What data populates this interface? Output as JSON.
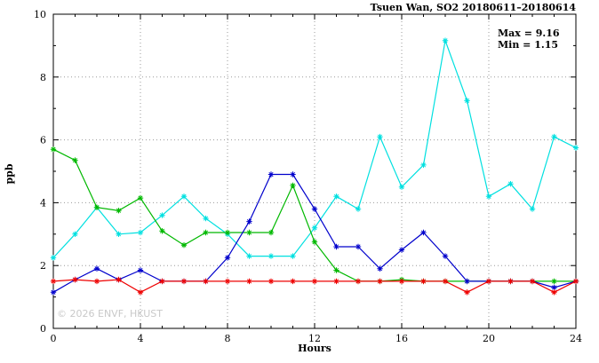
{
  "title": "Tsuen Wan, SO2 20180611–20180614",
  "annotation": {
    "max_label": "Max = 9.16",
    "min_label": "Min = 1.15"
  },
  "watermark": "© 2026 ENVF, HKUST",
  "axes": {
    "xlabel": "Hours",
    "ylabel": "ppb",
    "x_ticks": [
      0,
      4,
      8,
      12,
      16,
      20,
      24
    ],
    "y_ticks": [
      0,
      2,
      4,
      6,
      8,
      10
    ]
  },
  "chart_data": {
    "type": "line",
    "title": "Tsuen Wan, SO2 20180611–20180614",
    "xlabel": "Hours",
    "ylabel": "ppb",
    "xlim": [
      0,
      24
    ],
    "ylim": [
      0,
      10
    ],
    "grid": true,
    "legend": "none",
    "marker": "asterisk",
    "max": 9.16,
    "min": 1.15,
    "x": [
      0,
      1,
      2,
      3,
      4,
      5,
      6,
      7,
      8,
      9,
      10,
      11,
      12,
      13,
      14,
      15,
      16,
      17,
      18,
      19,
      20,
      21,
      22,
      23,
      24
    ],
    "series": [
      {
        "name": "series-cyan",
        "color": "#00e0e0",
        "values": [
          2.25,
          3.0,
          3.85,
          3.0,
          3.05,
          3.6,
          4.2,
          3.5,
          3.0,
          2.3,
          2.3,
          2.3,
          3.2,
          4.2,
          3.8,
          6.1,
          4.5,
          5.2,
          9.16,
          7.25,
          4.2,
          4.6,
          3.8,
          6.1,
          5.75
        ]
      },
      {
        "name": "series-green",
        "color": "#00b800",
        "values": [
          5.7,
          5.35,
          3.85,
          3.75,
          4.15,
          3.1,
          2.65,
          3.05,
          3.05,
          3.05,
          3.05,
          4.55,
          2.75,
          1.85,
          1.5,
          1.5,
          1.55,
          1.5,
          1.5,
          1.5,
          1.5,
          1.5,
          1.5,
          1.5,
          1.5
        ]
      },
      {
        "name": "series-blue",
        "color": "#0000cc",
        "values": [
          1.15,
          1.55,
          1.9,
          1.55,
          1.85,
          1.5,
          1.5,
          1.5,
          2.25,
          3.4,
          4.9,
          4.9,
          3.8,
          2.6,
          2.6,
          1.9,
          2.5,
          3.05,
          2.3,
          1.5,
          1.5,
          1.5,
          1.5,
          1.3,
          1.5
        ]
      },
      {
        "name": "series-red",
        "color": "#ee0000",
        "values": [
          1.5,
          1.55,
          1.5,
          1.55,
          1.15,
          1.5,
          1.5,
          1.5,
          1.5,
          1.5,
          1.5,
          1.5,
          1.5,
          1.5,
          1.5,
          1.5,
          1.5,
          1.5,
          1.5,
          1.15,
          1.5,
          1.5,
          1.5,
          1.15,
          1.5
        ]
      }
    ]
  }
}
